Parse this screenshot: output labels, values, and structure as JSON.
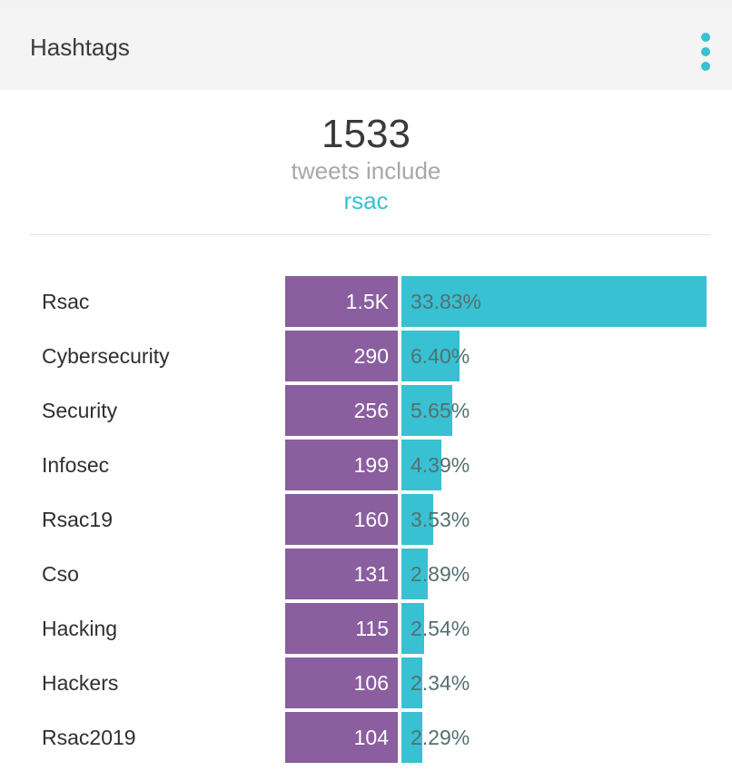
{
  "header": {
    "title": "Hashtags",
    "menu_icon": "more-vertical-icon"
  },
  "summary": {
    "count": "1533",
    "label": "tweets include",
    "term": "rsac"
  },
  "colors": {
    "accent": "#37c1d3",
    "count_bar": "#8a5e9f",
    "percent_text": "#55706f"
  },
  "hashtags": [
    {
      "name": "Rsac",
      "count": "1.5K",
      "percent": "33.83%",
      "share": 0.3383
    },
    {
      "name": "Cybersecurity",
      "count": "290",
      "percent": "6.40%",
      "share": 0.064
    },
    {
      "name": "Security",
      "count": "256",
      "percent": "5.65%",
      "share": 0.0565
    },
    {
      "name": "Infosec",
      "count": "199",
      "percent": "4.39%",
      "share": 0.0439
    },
    {
      "name": "Rsac19",
      "count": "160",
      "percent": "3.53%",
      "share": 0.0353
    },
    {
      "name": "Cso",
      "count": "131",
      "percent": "2.89%",
      "share": 0.0289
    },
    {
      "name": "Hacking",
      "count": "115",
      "percent": "2.54%",
      "share": 0.0254
    },
    {
      "name": "Hackers",
      "count": "106",
      "percent": "2.34%",
      "share": 0.0234
    },
    {
      "name": "Rsac2019",
      "count": "104",
      "percent": "2.29%",
      "share": 0.0229
    }
  ]
}
